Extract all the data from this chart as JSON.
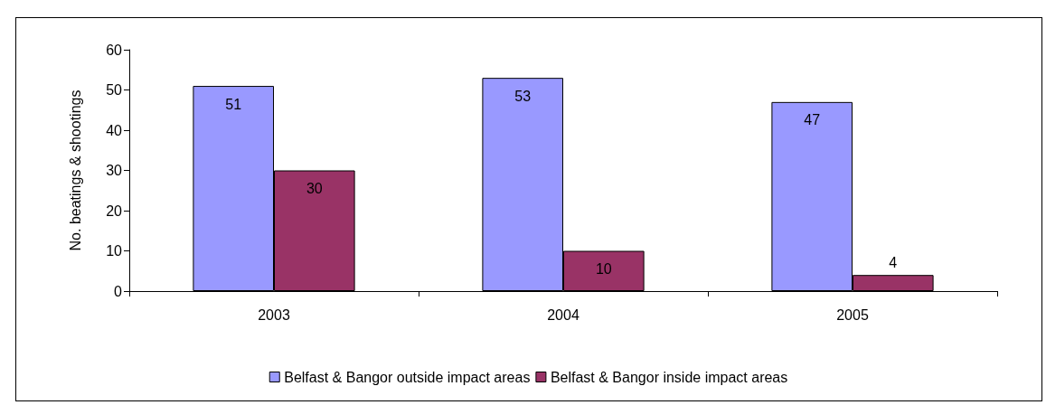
{
  "chart_data": {
    "type": "bar",
    "ylabel": "No. beatings & shootings",
    "categories": [
      "2003",
      "2004",
      "2005"
    ],
    "series": [
      {
        "name": "Belfast & Bangor outside impact areas",
        "color": "#9999ff",
        "values": [
          51,
          53,
          47
        ]
      },
      {
        "name": "Belfast & Bangor inside impact areas",
        "color": "#993366",
        "values": [
          30,
          10,
          4
        ]
      }
    ],
    "ylim": [
      0,
      60
    ],
    "yticks": [
      0,
      10,
      20,
      30,
      40,
      50,
      60
    ],
    "grid": false,
    "legend": "bottom",
    "data_labels": true
  }
}
